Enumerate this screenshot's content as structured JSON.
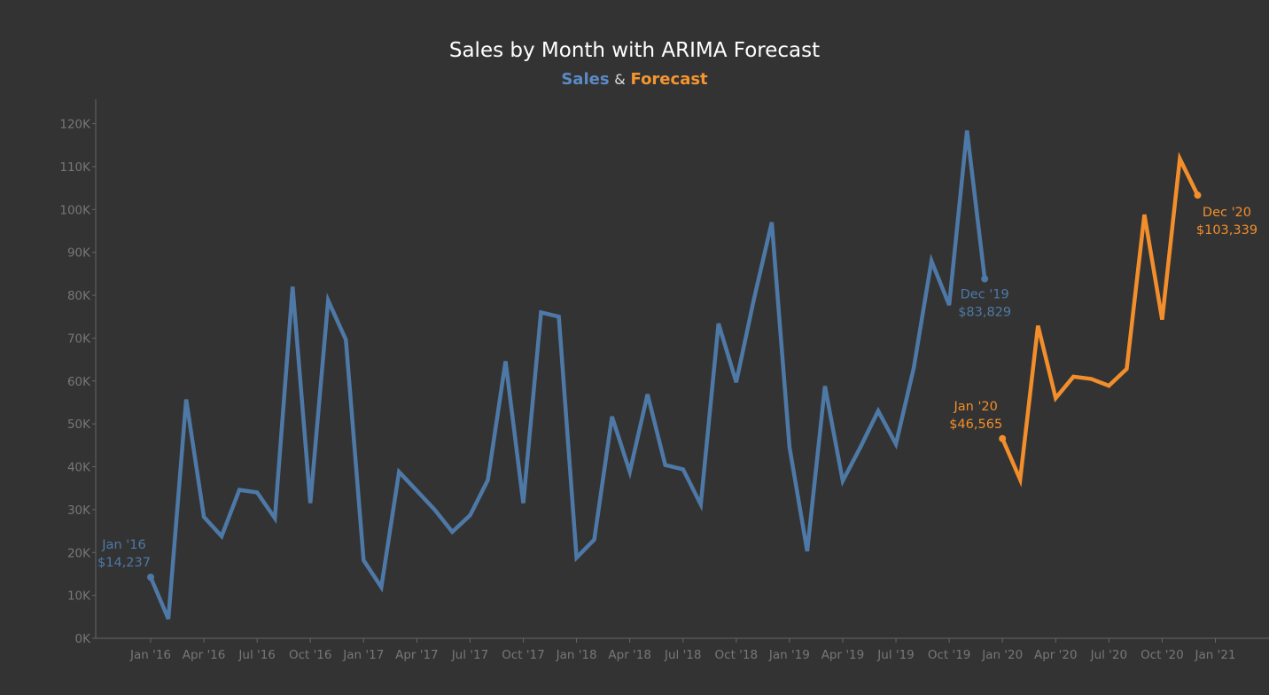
{
  "title": "Sales by Month with ARIMA Forecast",
  "subtitle": {
    "sales": "Sales",
    "amp": "&",
    "forecast": "Forecast"
  },
  "colors": {
    "background": "#333333",
    "sales": "#4e79a7",
    "forecast": "#f28e2b",
    "axis": "#666666",
    "tick_text": "#777777"
  },
  "chart_data": {
    "type": "line",
    "title": "Sales by Month with ARIMA Forecast",
    "ylim": [
      0,
      120000
    ],
    "y_ticks": [
      0,
      10000,
      20000,
      30000,
      40000,
      50000,
      60000,
      70000,
      80000,
      90000,
      100000,
      110000,
      120000
    ],
    "y_tick_labels": [
      "0K",
      "10K",
      "20K",
      "30K",
      "40K",
      "50K",
      "60K",
      "70K",
      "80K",
      "90K",
      "100K",
      "110K",
      "120K"
    ],
    "x_ticks": [
      "2016-01",
      "2016-04",
      "2016-07",
      "2016-10",
      "2017-01",
      "2017-04",
      "2017-07",
      "2017-10",
      "2018-01",
      "2018-04",
      "2018-07",
      "2018-10",
      "2019-01",
      "2019-04",
      "2019-07",
      "2019-10",
      "2020-01",
      "2020-04",
      "2020-07",
      "2020-10",
      "2021-01"
    ],
    "x_tick_labels": [
      "Jan '16",
      "Apr '16",
      "Jul '16",
      "Oct '16",
      "Jan '17",
      "Apr '17",
      "Jul '17",
      "Oct '17",
      "Jan '18",
      "Apr '18",
      "Jul '18",
      "Oct '18",
      "Jan '19",
      "Apr '19",
      "Jul '19",
      "Oct '19",
      "Jan '20",
      "Apr '20",
      "Jul '20",
      "Oct '20",
      "Jan '21"
    ],
    "series": [
      {
        "name": "Sales",
        "color": "#4e79a7",
        "x": [
          "2016-01",
          "2016-02",
          "2016-03",
          "2016-04",
          "2016-05",
          "2016-06",
          "2016-07",
          "2016-08",
          "2016-09",
          "2016-10",
          "2016-11",
          "2016-12",
          "2017-01",
          "2017-02",
          "2017-03",
          "2017-04",
          "2017-05",
          "2017-06",
          "2017-07",
          "2017-08",
          "2017-09",
          "2017-10",
          "2017-11",
          "2017-12",
          "2018-01",
          "2018-02",
          "2018-03",
          "2018-04",
          "2018-05",
          "2018-06",
          "2018-07",
          "2018-08",
          "2018-09",
          "2018-10",
          "2018-11",
          "2018-12",
          "2019-01",
          "2019-02",
          "2019-03",
          "2019-04",
          "2019-05",
          "2019-06",
          "2019-07",
          "2019-08",
          "2019-09",
          "2019-10",
          "2019-11",
          "2019-12"
        ],
        "values": [
          14237,
          4500,
          55700,
          28300,
          23800,
          34600,
          34000,
          28000,
          82000,
          31500,
          78800,
          69600,
          18200,
          11900,
          38800,
          34400,
          30000,
          24800,
          28700,
          36900,
          64600,
          31500,
          76000,
          75000,
          18800,
          23000,
          51700,
          38800,
          56900,
          40400,
          39400,
          31200,
          73400,
          59700,
          79100,
          97000,
          44600,
          20300,
          58800,
          36700,
          44600,
          53000,
          45300,
          63000,
          88000,
          77700,
          118400,
          83829
        ]
      },
      {
        "name": "Forecast",
        "color": "#f28e2b",
        "x": [
          "2020-01",
          "2020-02",
          "2020-03",
          "2020-04",
          "2020-05",
          "2020-06",
          "2020-07",
          "2020-08",
          "2020-09",
          "2020-10",
          "2020-11",
          "2020-12"
        ],
        "values": [
          46565,
          37000,
          72900,
          56000,
          61000,
          60500,
          58900,
          62800,
          98800,
          74300,
          111800,
          103339
        ]
      }
    ],
    "annotations": [
      {
        "line1": "Jan '16",
        "line2": "$14,237",
        "x": "2016-01",
        "y": 14237,
        "series": "Sales"
      },
      {
        "line1": "Dec '19",
        "line2": "$83,829",
        "x": "2019-12",
        "y": 83829,
        "series": "Sales"
      },
      {
        "line1": "Jan '20",
        "line2": "$46,565",
        "x": "2020-01",
        "y": 46565,
        "series": "Forecast"
      },
      {
        "line1": "Dec '20",
        "line2": "$103,339",
        "x": "2020-12",
        "y": 103339,
        "series": "Forecast"
      }
    ]
  }
}
